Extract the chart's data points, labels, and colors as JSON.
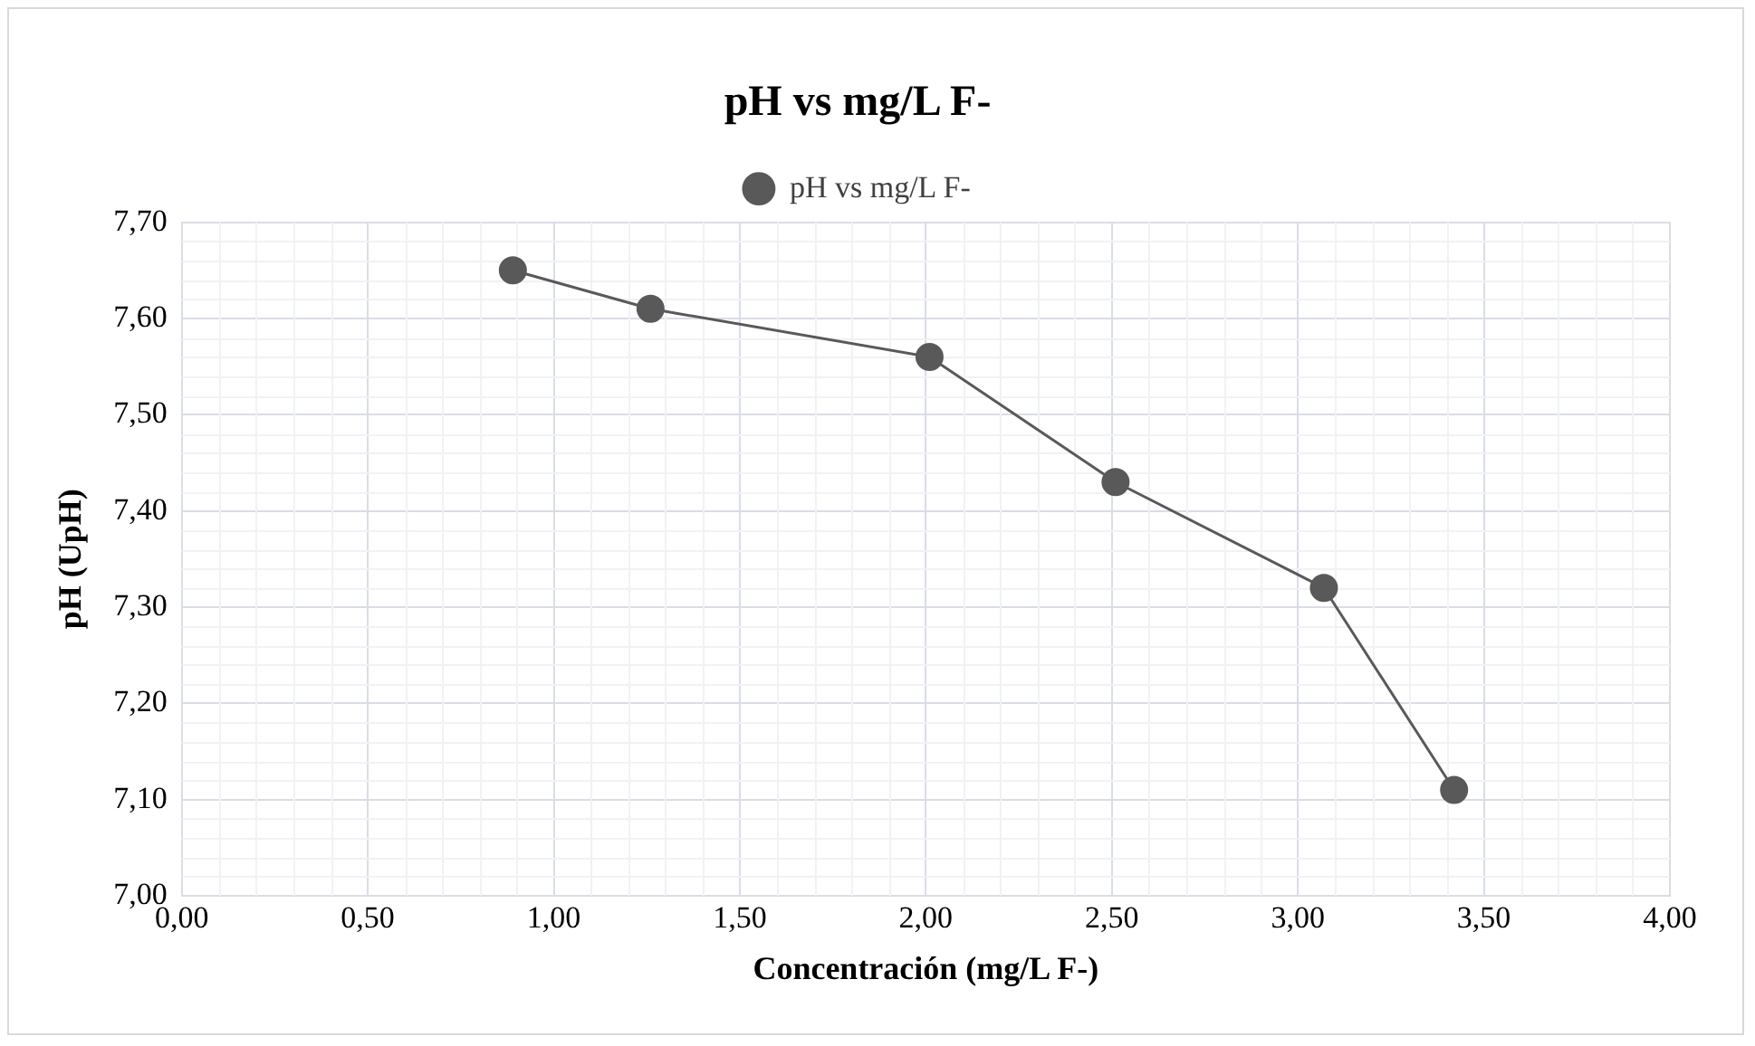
{
  "chart_data": {
    "type": "line",
    "title": "pH vs mg/L F-",
    "xlabel": "Concentración (mg/L F-)",
    "ylabel": "pH (UpH)",
    "x": [
      0.89,
      1.26,
      2.01,
      2.51,
      3.07,
      3.42
    ],
    "series": [
      {
        "name": "pH vs mg/L F-",
        "color": "#595959",
        "values": [
          7.65,
          7.61,
          7.56,
          7.43,
          7.32,
          7.11
        ]
      }
    ],
    "xlim": [
      0,
      4
    ],
    "ylim": [
      7,
      7.7
    ],
    "xticks": [
      {
        "value": 0,
        "label": "0,00"
      },
      {
        "value": 0.5,
        "label": "0,50"
      },
      {
        "value": 1,
        "label": "1,00"
      },
      {
        "value": 1.5,
        "label": "1,50"
      },
      {
        "value": 2,
        "label": "2,00"
      },
      {
        "value": 2.5,
        "label": "2,50"
      },
      {
        "value": 3,
        "label": "3,00"
      },
      {
        "value": 3.5,
        "label": "3,50"
      },
      {
        "value": 4,
        "label": "4,00"
      }
    ],
    "yticks": [
      {
        "value": 7,
        "label": "7,00"
      },
      {
        "value": 7.1,
        "label": "7,10"
      },
      {
        "value": 7.2,
        "label": "7,20"
      },
      {
        "value": 7.3,
        "label": "7,30"
      },
      {
        "value": 7.4,
        "label": "7,40"
      },
      {
        "value": 7.5,
        "label": "7,50"
      },
      {
        "value": 7.6,
        "label": "7,60"
      },
      {
        "value": 7.7,
        "label": "7,70"
      }
    ],
    "grid": true,
    "legend": "top",
    "marker": "circle",
    "line_style": "solid"
  }
}
